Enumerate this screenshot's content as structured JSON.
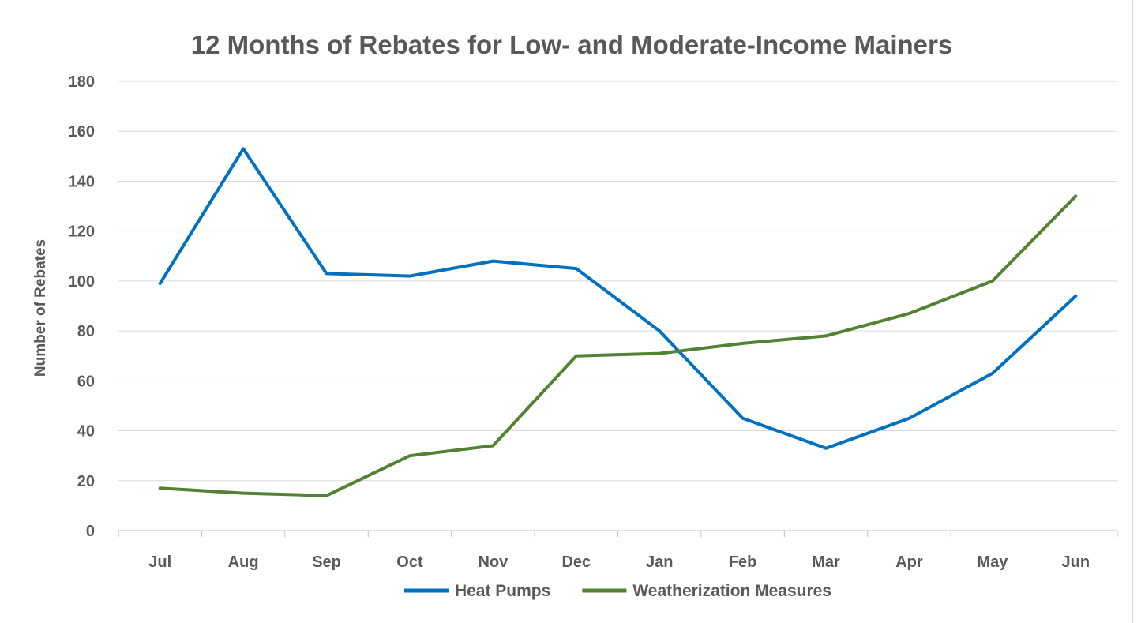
{
  "chart_data": {
    "type": "line",
    "title": "12 Months of Rebates for Low- and Moderate-Income Mainers",
    "xlabel": "",
    "ylabel": "Number of Rebates",
    "ylim": [
      0,
      180
    ],
    "yticks": [
      0,
      20,
      40,
      60,
      80,
      100,
      120,
      140,
      160,
      180
    ],
    "categories": [
      "Jul",
      "Aug",
      "Sep",
      "Oct",
      "Nov",
      "Dec",
      "Jan",
      "Feb",
      "Mar",
      "Apr",
      "May",
      "Jun"
    ],
    "grid": true,
    "legend_position": "bottom",
    "series": [
      {
        "name": "Heat Pumps",
        "color": "#0070c0",
        "values": [
          99,
          153,
          103,
          102,
          108,
          105,
          80,
          45,
          33,
          45,
          63,
          94
        ]
      },
      {
        "name": "Weatherization Measures",
        "color": "#548235",
        "values": [
          17,
          15,
          14,
          30,
          34,
          70,
          71,
          75,
          78,
          87,
          100,
          134
        ]
      }
    ]
  }
}
